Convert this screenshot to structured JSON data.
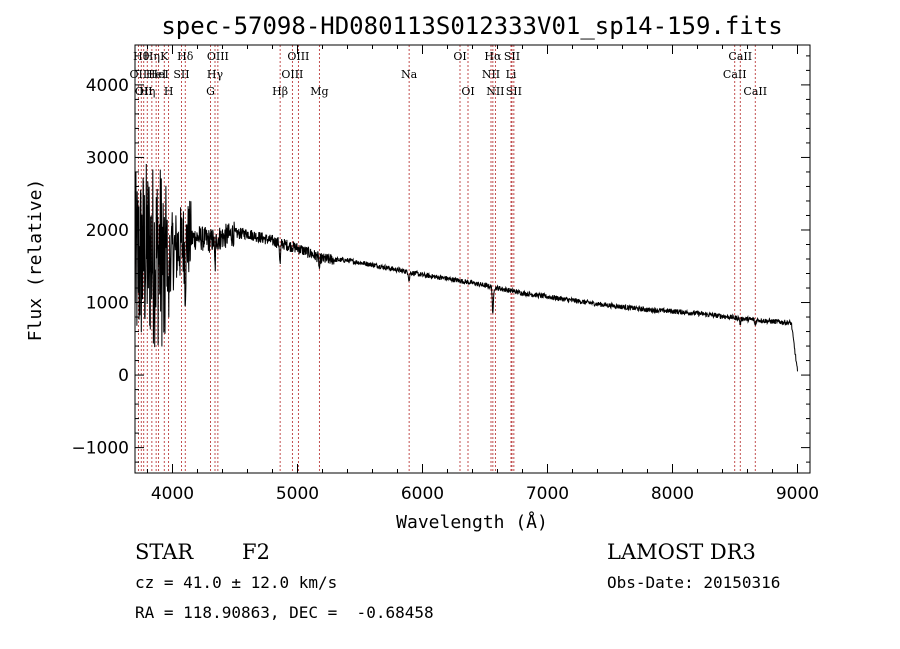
{
  "chart_data": {
    "type": "line",
    "title": "spec-57098-HD080113S012333V01_sp14-159.fits",
    "xlabel": "Wavelength (Å)",
    "ylabel": "Flux (relative)",
    "xlim": [
      3700,
      9100
    ],
    "ylim": [
      -1350,
      4550
    ],
    "xticks": [
      4000,
      5000,
      6000,
      7000,
      8000,
      9000
    ],
    "yticks": [
      -1000,
      0,
      1000,
      2000,
      3000,
      4000
    ],
    "continuum": [
      [
        3700,
        1500
      ],
      [
        3800,
        1700
      ],
      [
        3900,
        1650
      ],
      [
        4000,
        1700
      ],
      [
        4100,
        1850
      ],
      [
        4200,
        1900
      ],
      [
        4300,
        1850
      ],
      [
        4400,
        1900
      ],
      [
        4500,
        1950
      ],
      [
        4600,
        1950
      ],
      [
        4700,
        1900
      ],
      [
        4800,
        1850
      ],
      [
        4900,
        1800
      ],
      [
        5000,
        1750
      ],
      [
        5100,
        1680
      ],
      [
        5200,
        1600
      ],
      [
        5400,
        1580
      ],
      [
        5600,
        1520
      ],
      [
        5800,
        1450
      ],
      [
        6000,
        1380
      ],
      [
        6200,
        1330
      ],
      [
        6400,
        1270
      ],
      [
        6600,
        1200
      ],
      [
        6800,
        1130
      ],
      [
        7000,
        1080
      ],
      [
        7200,
        1030
      ],
      [
        7400,
        980
      ],
      [
        7600,
        940
      ],
      [
        7800,
        900
      ],
      [
        8000,
        880
      ],
      [
        8200,
        850
      ],
      [
        8400,
        810
      ],
      [
        8600,
        770
      ],
      [
        8800,
        740
      ],
      [
        8950,
        720
      ],
      [
        9000,
        50
      ]
    ],
    "absorption_dips": [
      {
        "wavelength": 3934,
        "depth": 800
      },
      {
        "wavelength": 3969,
        "depth": 700
      },
      {
        "wavelength": 4102,
        "depth": 500
      },
      {
        "wavelength": 4340,
        "depth": 400
      },
      {
        "wavelength": 4861,
        "depth": 300
      },
      {
        "wavelength": 5175,
        "depth": 150
      },
      {
        "wavelength": 5893,
        "depth": 120
      },
      {
        "wavelength": 6563,
        "depth": 400
      },
      {
        "wavelength": 8542,
        "depth": 80
      },
      {
        "wavelength": 8662,
        "depth": 80
      }
    ],
    "spectral_lines": [
      {
        "wavelength": 3727,
        "label": "OII",
        "row": 1
      },
      {
        "wavelength": 3750,
        "label": "Hθ",
        "row": 0
      },
      {
        "wavelength": 3770,
        "label": "OII",
        "row": 2
      },
      {
        "wavelength": 3798,
        "label": "Hη",
        "row": 2
      },
      {
        "wavelength": 3835,
        "label": "Hη",
        "row": 0
      },
      {
        "wavelength": 3869,
        "label": "HeI",
        "row": 1
      },
      {
        "wavelength": 3889,
        "label": "HeI",
        "row": 1
      },
      {
        "wavelength": 3934,
        "label": "K",
        "row": 0
      },
      {
        "wavelength": 3969,
        "label": "H",
        "row": 2
      },
      {
        "wavelength": 4072,
        "label": "SII",
        "row": 1
      },
      {
        "wavelength": 4102,
        "label": "Hδ",
        "row": 0
      },
      {
        "wavelength": 4304,
        "label": "G",
        "row": 2
      },
      {
        "wavelength": 4340,
        "label": "Hγ",
        "row": 1
      },
      {
        "wavelength": 4363,
        "label": "OIII",
        "row": 0
      },
      {
        "wavelength": 4861,
        "label": "Hβ",
        "row": 2
      },
      {
        "wavelength": 4959,
        "label": "OIII",
        "row": 1
      },
      {
        "wavelength": 5007,
        "label": "OIII",
        "row": 0
      },
      {
        "wavelength": 5175,
        "label": "Mg",
        "row": 2
      },
      {
        "wavelength": 5893,
        "label": "Na",
        "row": 1
      },
      {
        "wavelength": 6300,
        "label": "OI",
        "row": 0
      },
      {
        "wavelength": 6364,
        "label": "OI",
        "row": 2
      },
      {
        "wavelength": 6548,
        "label": "NII",
        "row": 1
      },
      {
        "wavelength": 6563,
        "label": "Hα",
        "row": 0
      },
      {
        "wavelength": 6583,
        "label": "NII",
        "row": 2
      },
      {
        "wavelength": 6708,
        "label": "Li",
        "row": 1
      },
      {
        "wavelength": 6716,
        "label": "SII",
        "row": 0
      },
      {
        "wavelength": 6731,
        "label": "SII",
        "row": 2
      },
      {
        "wavelength": 8498,
        "label": "CaII",
        "row": 1
      },
      {
        "wavelength": 8542,
        "label": "CaII",
        "row": 0
      },
      {
        "wavelength": 8662,
        "label": "CaII",
        "row": 2
      }
    ]
  },
  "info": {
    "object_class": "STAR",
    "subclass": "F2",
    "survey": "LAMOST DR3",
    "redshift": "cz = 41.0 ± 12.0 km/s",
    "obs_date": "Obs-Date: 20150316",
    "coords": "RA = 118.90863, DEC =  -0.68458"
  },
  "colors": {
    "spectrum": "#000000",
    "line_marker": "#b22222",
    "axes": "#000000"
  }
}
